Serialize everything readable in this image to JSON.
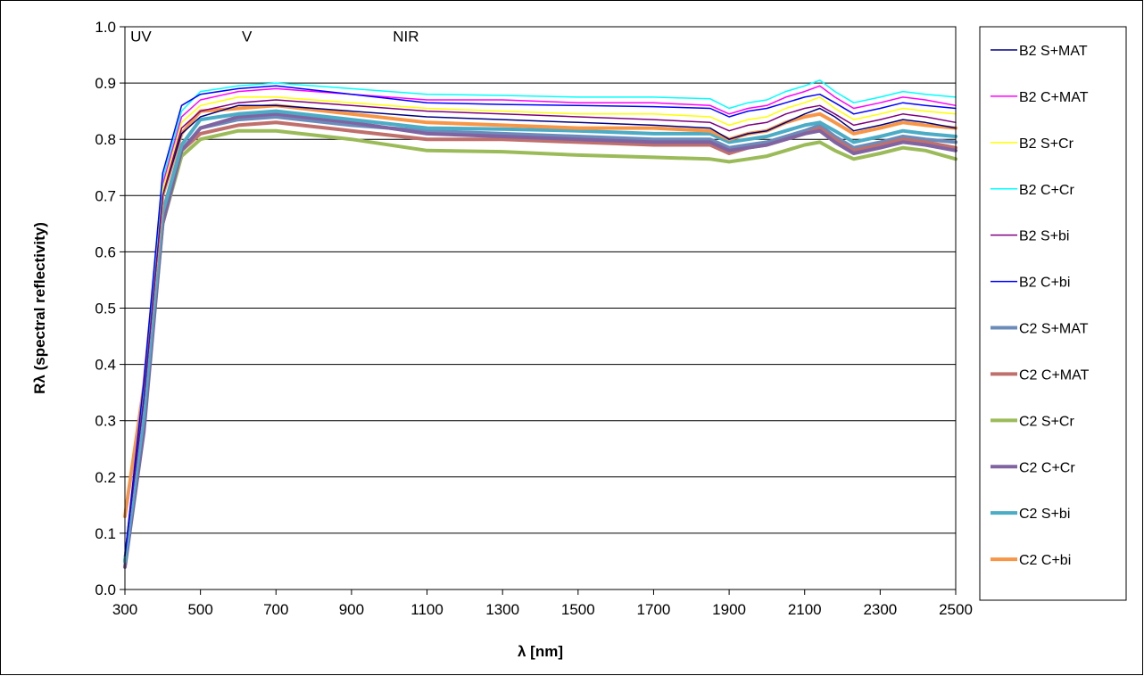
{
  "chart_data": {
    "type": "line",
    "title": "",
    "xlabel": "λ  [nm]",
    "ylabel": "Rλ  (spectral reflectivity)",
    "xlim": [
      300,
      2500
    ],
    "ylim": [
      0.0,
      1.0
    ],
    "x_ticks": [
      300,
      500,
      700,
      900,
      1100,
      1300,
      1500,
      1700,
      1900,
      2100,
      2300,
      2500
    ],
    "y_ticks": [
      "0.0",
      "0.1",
      "0.2",
      "0.3",
      "0.4",
      "0.5",
      "0.6",
      "0.7",
      "0.8",
      "0.9",
      "1.0"
    ],
    "grid": "horizontal",
    "legend_position": "right",
    "annotations": [
      {
        "text": "UV",
        "x": 305,
        "y": 0.98
      },
      {
        "text": "V",
        "x": 600,
        "y": 0.98
      },
      {
        "text": "NIR",
        "x": 1000,
        "y": 0.98
      }
    ],
    "x": [
      300,
      350,
      400,
      450,
      500,
      600,
      700,
      900,
      1100,
      1300,
      1500,
      1700,
      1850,
      1900,
      1950,
      2000,
      2050,
      2100,
      2140,
      2180,
      2230,
      2300,
      2360,
      2420,
      2500
    ],
    "series": [
      {
        "name": "B2 S+MAT",
        "color": "#000080",
        "width": 1.5,
        "values": [
          0.06,
          0.34,
          0.7,
          0.81,
          0.84,
          0.86,
          0.86,
          0.85,
          0.84,
          0.835,
          0.83,
          0.825,
          0.82,
          0.8,
          0.81,
          0.815,
          0.83,
          0.845,
          0.855,
          0.84,
          0.815,
          0.825,
          0.835,
          0.83,
          0.82
        ]
      },
      {
        "name": "B2 C+MAT",
        "color": "#ff00ff",
        "width": 1.5,
        "values": [
          0.06,
          0.36,
          0.72,
          0.84,
          0.87,
          0.885,
          0.89,
          0.88,
          0.87,
          0.87,
          0.865,
          0.865,
          0.86,
          0.845,
          0.855,
          0.86,
          0.875,
          0.885,
          0.895,
          0.875,
          0.855,
          0.865,
          0.875,
          0.87,
          0.86
        ]
      },
      {
        "name": "B2 S+Cr",
        "color": "#ffff00",
        "width": 1.5,
        "values": [
          0.06,
          0.35,
          0.71,
          0.83,
          0.86,
          0.875,
          0.875,
          0.865,
          0.855,
          0.85,
          0.845,
          0.845,
          0.84,
          0.825,
          0.835,
          0.84,
          0.855,
          0.865,
          0.875,
          0.855,
          0.835,
          0.845,
          0.855,
          0.85,
          0.845
        ]
      },
      {
        "name": "B2 C+Cr",
        "color": "#00ffff",
        "width": 1.5,
        "values": [
          0.06,
          0.36,
          0.73,
          0.85,
          0.885,
          0.895,
          0.9,
          0.89,
          0.88,
          0.878,
          0.875,
          0.875,
          0.872,
          0.855,
          0.865,
          0.87,
          0.885,
          0.895,
          0.905,
          0.885,
          0.865,
          0.875,
          0.885,
          0.88,
          0.875
        ]
      },
      {
        "name": "B2 S+bi",
        "color": "#800080",
        "width": 1.5,
        "values": [
          0.06,
          0.34,
          0.7,
          0.82,
          0.85,
          0.865,
          0.87,
          0.86,
          0.85,
          0.845,
          0.84,
          0.835,
          0.83,
          0.815,
          0.825,
          0.83,
          0.845,
          0.855,
          0.86,
          0.845,
          0.825,
          0.835,
          0.845,
          0.84,
          0.83
        ]
      },
      {
        "name": "B2 C+bi",
        "color": "#0000ff",
        "width": 1.5,
        "values": [
          0.06,
          0.37,
          0.74,
          0.86,
          0.88,
          0.89,
          0.895,
          0.88,
          0.865,
          0.862,
          0.86,
          0.858,
          0.855,
          0.84,
          0.85,
          0.855,
          0.865,
          0.875,
          0.88,
          0.865,
          0.845,
          0.855,
          0.865,
          0.86,
          0.855
        ]
      },
      {
        "name": "C2 S+MAT",
        "color": "#6b8cba",
        "width": 4,
        "values": [
          0.05,
          0.3,
          0.66,
          0.78,
          0.82,
          0.835,
          0.84,
          0.825,
          0.815,
          0.81,
          0.805,
          0.8,
          0.8,
          0.785,
          0.79,
          0.795,
          0.805,
          0.815,
          0.825,
          0.805,
          0.785,
          0.795,
          0.805,
          0.8,
          0.795
        ]
      },
      {
        "name": "C2 C+MAT",
        "color": "#c0706c",
        "width": 4,
        "values": [
          0.05,
          0.3,
          0.66,
          0.78,
          0.81,
          0.825,
          0.83,
          0.815,
          0.8,
          0.8,
          0.795,
          0.79,
          0.79,
          0.775,
          0.785,
          0.79,
          0.8,
          0.81,
          0.82,
          0.8,
          0.78,
          0.79,
          0.8,
          0.795,
          0.785
        ]
      },
      {
        "name": "C2 S+Cr",
        "color": "#9bbb59",
        "width": 4,
        "values": [
          0.05,
          0.29,
          0.65,
          0.77,
          0.8,
          0.815,
          0.815,
          0.8,
          0.78,
          0.778,
          0.772,
          0.768,
          0.765,
          0.76,
          0.765,
          0.77,
          0.78,
          0.79,
          0.795,
          0.78,
          0.765,
          0.775,
          0.785,
          0.78,
          0.765
        ]
      },
      {
        "name": "C2 C+Cr",
        "color": "#8064a2",
        "width": 4,
        "values": [
          0.04,
          0.28,
          0.65,
          0.78,
          0.82,
          0.84,
          0.845,
          0.83,
          0.81,
          0.805,
          0.8,
          0.795,
          0.795,
          0.78,
          0.785,
          0.79,
          0.8,
          0.81,
          0.815,
          0.795,
          0.775,
          0.785,
          0.795,
          0.79,
          0.78
        ]
      },
      {
        "name": "C2 S+bi",
        "color": "#4bacc6",
        "width": 4,
        "values": [
          0.05,
          0.31,
          0.67,
          0.79,
          0.835,
          0.845,
          0.85,
          0.835,
          0.82,
          0.818,
          0.815,
          0.81,
          0.81,
          0.795,
          0.8,
          0.805,
          0.815,
          0.825,
          0.83,
          0.815,
          0.795,
          0.805,
          0.815,
          0.81,
          0.805
        ]
      },
      {
        "name": "C2 C+bi",
        "color": "#f79646",
        "width": 4,
        "values": [
          0.13,
          0.36,
          0.7,
          0.81,
          0.85,
          0.855,
          0.86,
          0.845,
          0.83,
          0.825,
          0.82,
          0.82,
          0.815,
          0.8,
          0.81,
          0.815,
          0.83,
          0.84,
          0.845,
          0.83,
          0.81,
          0.82,
          0.83,
          0.825,
          0.82
        ]
      }
    ]
  }
}
